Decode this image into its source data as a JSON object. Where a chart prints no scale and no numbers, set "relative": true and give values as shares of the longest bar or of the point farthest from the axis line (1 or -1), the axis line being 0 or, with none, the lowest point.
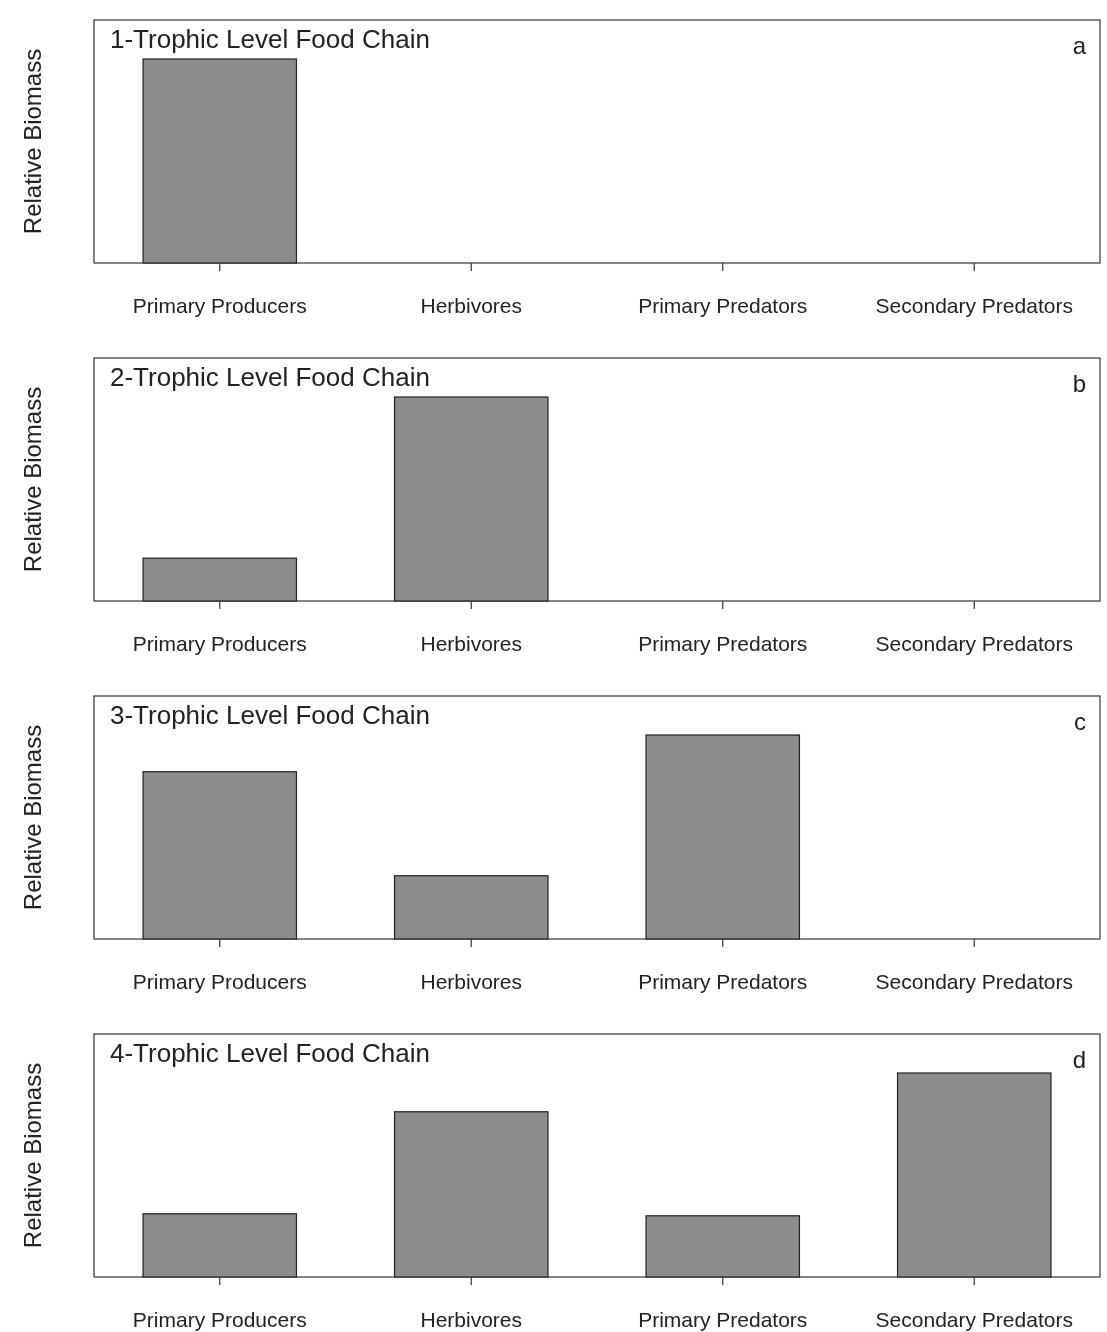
{
  "chart_data": [
    {
      "type": "bar",
      "title": "1-Trophic Level Food Chain",
      "ylabel": "Relative Biomass",
      "categories": [
        "Primary Producers",
        "Herbivores",
        "Primary Predators",
        "Secondary Predators"
      ],
      "values": [
        1,
        0,
        0,
        0
      ],
      "color": "#8c8c8c",
      "relative": true,
      "annotations": [
        "a"
      ]
    },
    {
      "type": "bar",
      "title": "2-Trophic Level Food Chain",
      "ylabel": "Relative Biomass",
      "categories": [
        "Primary Producers",
        "Herbivores",
        "Primary Predators",
        "Secondary Predators"
      ],
      "values": [
        0.21,
        1,
        0,
        0
      ],
      "color": "#8c8c8c",
      "relative": true,
      "annotations": [
        "b"
      ]
    },
    {
      "type": "bar",
      "title": "3-Trophic Level Food Chain",
      "ylabel": "Relative Biomass",
      "categories": [
        "Primary Producers",
        "Herbivores",
        "Primary Predators",
        "Secondary Predators"
      ],
      "values": [
        0.82,
        0.31,
        1,
        0
      ],
      "color": "#8c8c8c",
      "relative": true,
      "annotations": [
        "c"
      ]
    },
    {
      "type": "bar",
      "title": "4-Trophic Level Food Chain",
      "ylabel": "Relative Biomass",
      "categories": [
        "Primary Producers",
        "Herbivores",
        "Primary Predators",
        "Secondary Predators"
      ],
      "values": [
        0.31,
        0.81,
        0.3,
        1
      ],
      "color": "#8c8c8c",
      "relative": true,
      "annotations": [
        "d"
      ]
    }
  ]
}
